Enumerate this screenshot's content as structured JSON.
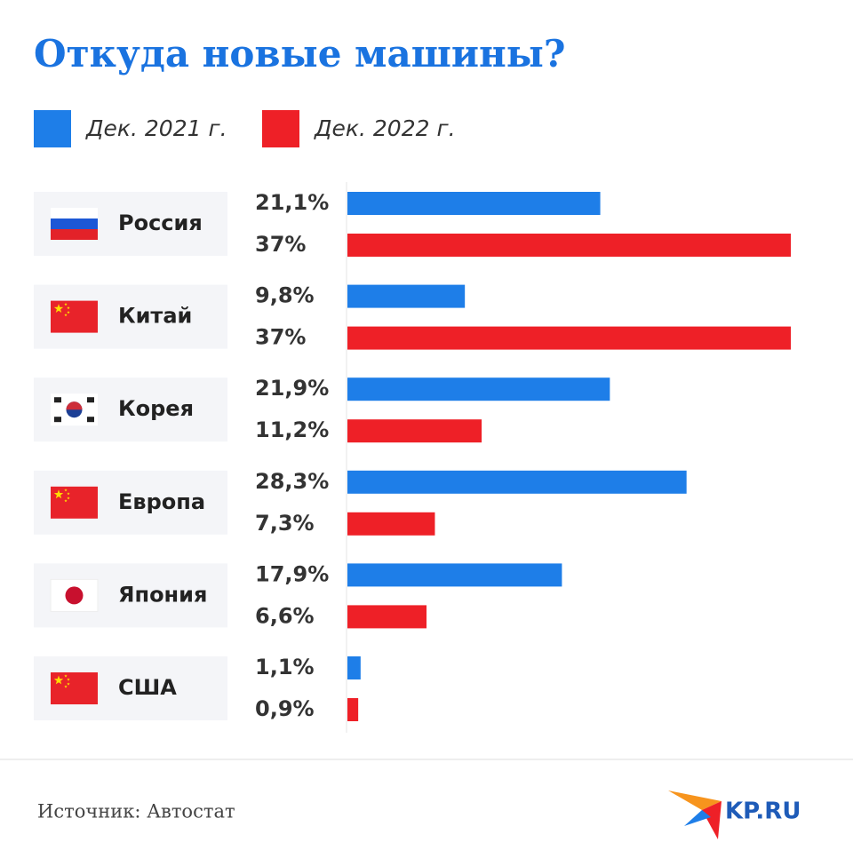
{
  "chart_data": {
    "type": "bar",
    "orientation": "horizontal",
    "title": "Откуда новые машины?",
    "categories": [
      "Россия",
      "Китай",
      "Корея",
      "Европа",
      "Япония",
      "США"
    ],
    "series": [
      {
        "name": "Дек. 2021 г.",
        "color": "#1e7ee8",
        "values": [
          21.1,
          9.8,
          21.9,
          28.3,
          17.9,
          1.1
        ],
        "value_labels": [
          "21,1%",
          "9,8%",
          "21,9%",
          "28,3%",
          "17,9%",
          "1,1%"
        ]
      },
      {
        "name": "Дек. 2022 г.",
        "color": "#ee2027",
        "values": [
          37,
          37,
          11.2,
          7.3,
          6.6,
          0.9
        ],
        "value_labels": [
          "37%",
          "37%",
          "11,2%",
          "7,3%",
          "6,6%",
          "0,9%"
        ]
      }
    ],
    "source": "Источник: Автостат",
    "logo": "KP.RU"
  }
}
